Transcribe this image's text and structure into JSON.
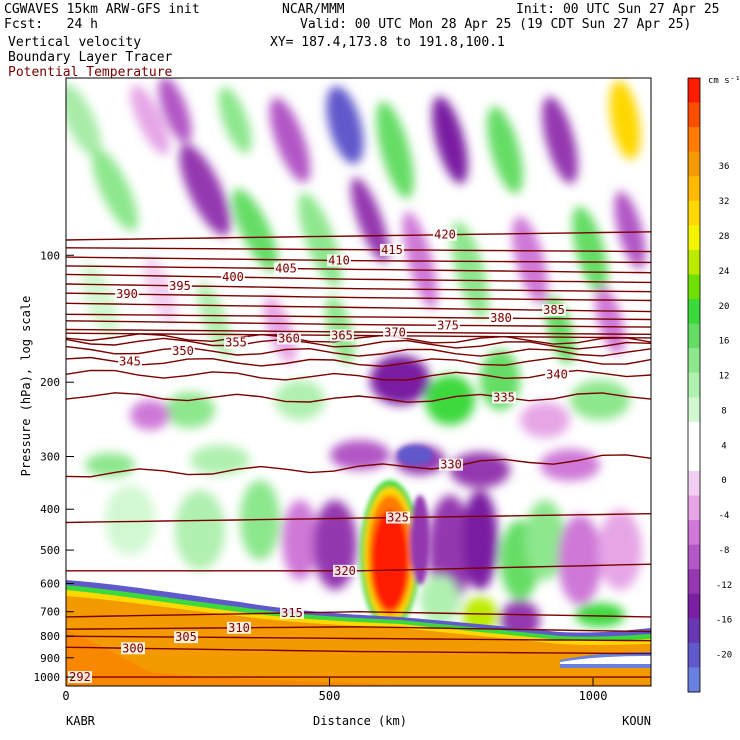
{
  "header": {
    "model_title": "CGWAVES 15km ARW-GFS init",
    "forecast": "Fcst:   24 h",
    "field1": "Vertical velocity",
    "field2": "Boundary Layer Tracer",
    "field3": "Potential Temperature",
    "org": "NCAR/MMM",
    "xy": "XY= 187.4,173.8 to 191.8,100.1",
    "init": "Init: 00 UTC Sun 27 Apr 25",
    "valid": "Valid: 00 UTC Mon 28 Apr 25 (19 CDT Sun 27 Apr 25)"
  },
  "colors": {
    "theta_line": "#7a0000",
    "terrain_fill": "#f39a00"
  },
  "chart_data": {
    "type": "heatmap",
    "title": "Vertical velocity",
    "ylabel": "Pressure (hPa), log scale",
    "xlabel": "Distance (km)",
    "x_ticks": [
      0,
      500,
      1000
    ],
    "x_range": [
      0,
      1110
    ],
    "x_endpoints": {
      "left": "KABR",
      "right": "KOUN"
    },
    "y_ticks": [
      100,
      200,
      300,
      400,
      500,
      600,
      700,
      800,
      900,
      1000
    ],
    "y_range": [
      38,
      1050
    ],
    "y_scale": "log",
    "colorbar": {
      "unit": "cm s⁻¹",
      "tick_labels": [
        "36",
        "32",
        "28",
        "24",
        "20",
        "16",
        "12",
        "8",
        "4",
        "0",
        "-4",
        "-8",
        "-12",
        "-16",
        "-20"
      ],
      "colors": [
        "#ff1c00",
        "#ff4e00",
        "#ff7b00",
        "#f39a00",
        "#ffba00",
        "#ffd800",
        "#f3f500",
        "#bdeb00",
        "#6fe100",
        "#3cd93c",
        "#65dd65",
        "#8de78d",
        "#b0f0b0",
        "#d2f8d2",
        "#ffffff",
        "#ffffff",
        "#f3d0f3",
        "#e6a6e6",
        "#cf78d8",
        "#b257c6",
        "#9437b0",
        "#7a1fa2",
        "#6838b2",
        "#6059cc",
        "#6a80e0"
      ]
    },
    "theta_isentropes_K": [
      {
        "value": 292,
        "label": "292"
      },
      {
        "value": 300,
        "label": "300"
      },
      {
        "value": 305,
        "label": "305"
      },
      {
        "value": 310,
        "label": "310"
      },
      {
        "value": 315,
        "label": "315"
      },
      {
        "value": 320,
        "label": "320"
      },
      {
        "value": 325,
        "label": "325"
      },
      {
        "value": 330,
        "label": "330"
      },
      {
        "value": 335,
        "label": "335"
      },
      {
        "value": 340,
        "label": "340"
      },
      {
        "value": 345,
        "label": "345"
      },
      {
        "value": 350,
        "label": "350"
      },
      {
        "value": 355,
        "label": "355"
      },
      {
        "value": 360,
        "label": "360"
      },
      {
        "value": 365,
        "label": "365"
      },
      {
        "value": 370,
        "label": "370"
      },
      {
        "value": 375,
        "label": "375"
      },
      {
        "value": 380,
        "label": "380"
      },
      {
        "value": 385,
        "label": "385"
      },
      {
        "value": 390,
        "label": "390"
      },
      {
        "value": 395,
        "label": "395"
      },
      {
        "value": 400,
        "label": "400"
      },
      {
        "value": 405,
        "label": "405"
      },
      {
        "value": 410,
        "label": "410"
      },
      {
        "value": 415,
        "label": "415"
      },
      {
        "value": 420,
        "label": "420"
      }
    ]
  }
}
